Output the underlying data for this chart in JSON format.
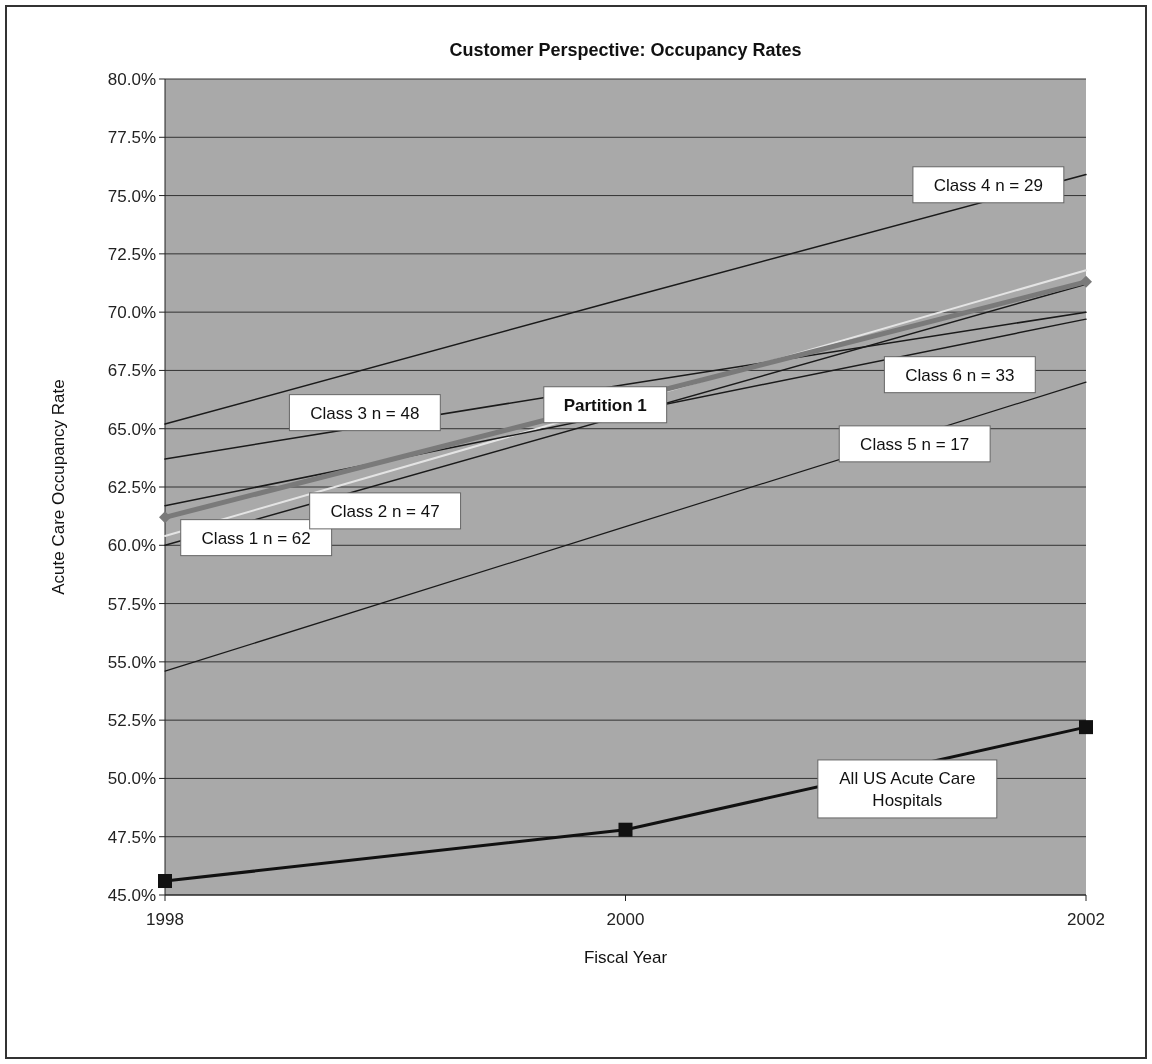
{
  "chart_data": {
    "type": "line",
    "title": "Customer Perspective: Occupancy Rates",
    "xlabel": "Fiscal Year",
    "ylabel": "Acute Care Occupancy Rate",
    "x": [
      1998,
      2000,
      2002
    ],
    "xlim": [
      1998,
      2002
    ],
    "xticks": [
      1998,
      2000,
      2002
    ],
    "ylim": [
      45,
      80
    ],
    "yticks": [
      {
        "value": 45,
        "label": "45.0%"
      },
      {
        "value": 47.5,
        "label": "47.5%"
      },
      {
        "value": 50,
        "label": "50.0%"
      },
      {
        "value": 52.5,
        "label": "52.5%"
      },
      {
        "value": 55,
        "label": "55.0%"
      },
      {
        "value": 57.5,
        "label": "57.5%"
      },
      {
        "value": 60,
        "label": "60.0%"
      },
      {
        "value": 62.5,
        "label": "62.5%"
      },
      {
        "value": 65,
        "label": "65.0%"
      },
      {
        "value": 67.5,
        "label": "67.5%"
      },
      {
        "value": 70,
        "label": "70.0%"
      },
      {
        "value": 72.5,
        "label": "72.5%"
      },
      {
        "value": 75,
        "label": "75.0%"
      },
      {
        "value": 77.5,
        "label": "77.5%"
      },
      {
        "value": 80,
        "label": "80.0%"
      }
    ],
    "grid": "y",
    "series": [
      {
        "name": "Class 1 n = 62",
        "color": "#e4e4e4",
        "values": [
          60.4,
          null,
          71.8
        ]
      },
      {
        "name": "Class 2 n = 47",
        "color": "#1a1a1a",
        "values": [
          60.0,
          null,
          71.2
        ]
      },
      {
        "name": "Class 3 n = 48",
        "color": "#1a1a1a",
        "values": [
          63.7,
          66.9,
          70.0
        ]
      },
      {
        "name": "Class 4 n = 29",
        "color": "#1a1a1a",
        "values": [
          65.2,
          70.6,
          75.9
        ]
      },
      {
        "name": "Class 5 n = 17",
        "color": "#1a1a1a",
        "values": [
          54.6,
          60.8,
          67.0
        ]
      },
      {
        "name": "Class 6 n = 33",
        "color": "#1a1a1a",
        "values": [
          61.7,
          null,
          69.7
        ]
      },
      {
        "name": "Partition 1",
        "color": "#7a7a7a",
        "values": [
          61.2,
          null,
          71.3
        ],
        "marker": "diamond"
      },
      {
        "name": "All US Acute Care Hospitals",
        "color": "#111111",
        "values": [
          45.6,
          47.8,
          52.2
        ],
        "marker": "square"
      }
    ]
  }
}
